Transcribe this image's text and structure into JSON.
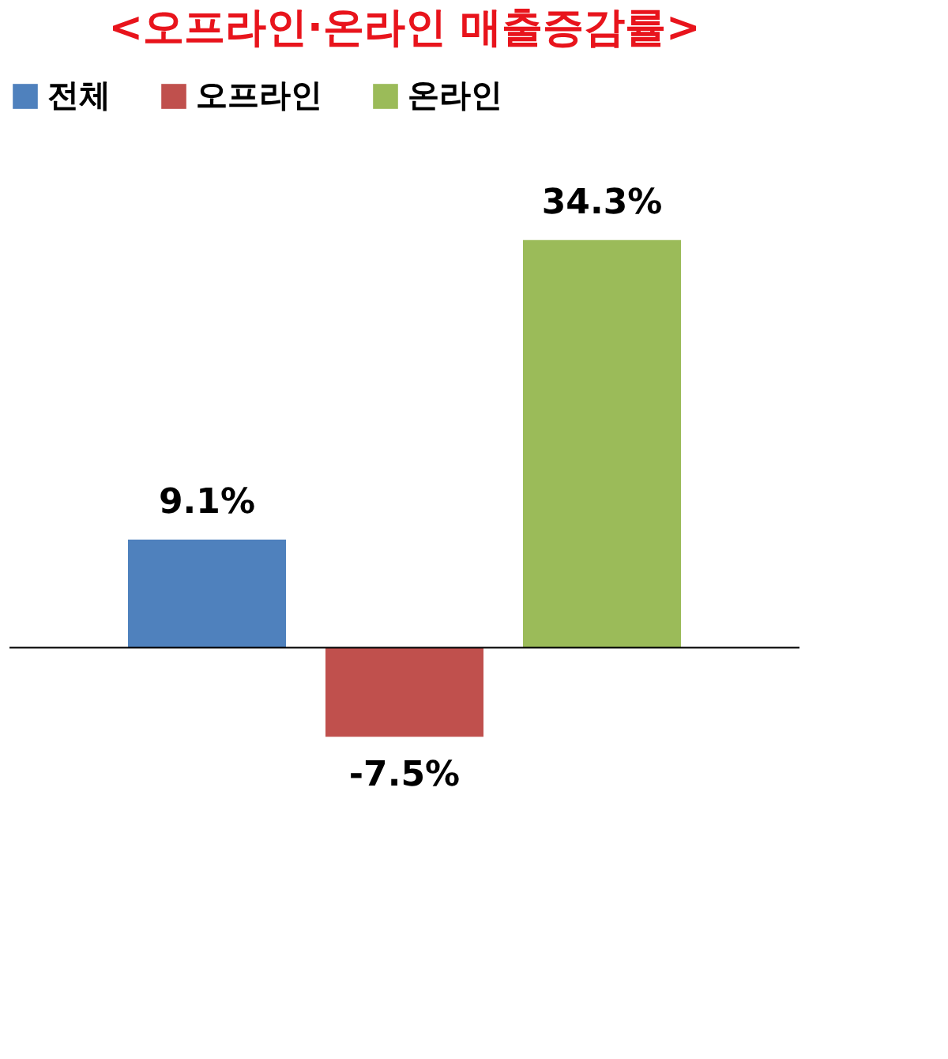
{
  "chart_data": {
    "type": "bar",
    "title": "<오프라인·온라인 매출증감률>",
    "categories": [
      null
    ],
    "series": [
      {
        "name": "전체",
        "color": "#4f81bd",
        "values": [
          9.1
        ],
        "value_labels": [
          "9.1%"
        ]
      },
      {
        "name": "오프라인",
        "color": "#c0504d",
        "values": [
          -7.5
        ],
        "value_labels": [
          "-7.5%"
        ]
      },
      {
        "name": "온라인",
        "color": "#9bbb59",
        "values": [
          34.3
        ],
        "value_labels": [
          "34.3%"
        ]
      }
    ],
    "legend": "top",
    "grid": false,
    "tick_labels": false
  }
}
